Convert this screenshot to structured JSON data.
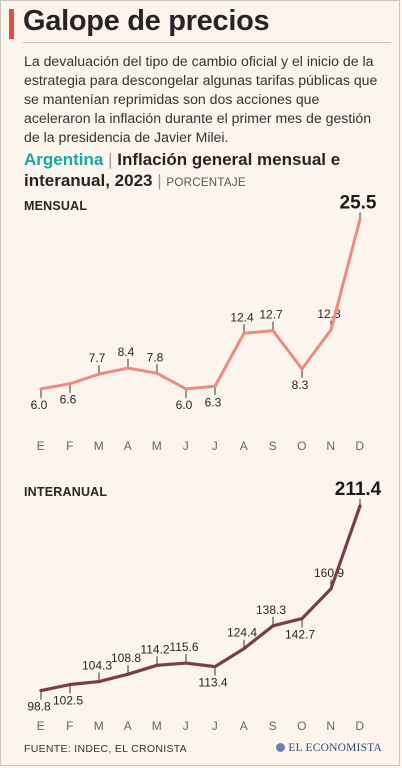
{
  "header": {
    "title": "Galope de precios",
    "intro": "La devaluación del tipo de cambio oficial y el inicio de la estrategia para descongelar algunas tarifas públicas que se mantenían reprimidas son dos acciones que aceleraron la inflación durante el primer mes de gestión de la presidencia de Javier Milei."
  },
  "subtitle": {
    "country": "Argentina",
    "separator": "|",
    "text": "Inflación general mensual e interanual, 2023",
    "unit_separator": "|",
    "unit": "PORCENTAJE"
  },
  "colors": {
    "accent": "#e24f3d",
    "mensual_line": "#ef8a80",
    "interanual_line": "#7a3f40",
    "teal": "#17a7a7"
  },
  "chart_data": [
    {
      "type": "line",
      "title": "MENSUAL",
      "categories": [
        "E",
        "F",
        "M",
        "A",
        "M",
        "J",
        "J",
        "A",
        "S",
        "O",
        "N",
        "D"
      ],
      "values": [
        6.0,
        6.6,
        7.7,
        8.4,
        7.8,
        6.0,
        6.3,
        12.4,
        12.7,
        8.3,
        12.8,
        25.5
      ],
      "labels": [
        "6.0",
        "6.6",
        "7.7",
        "8.4",
        "7.8",
        "6.0",
        "6.3",
        "12.4",
        "12.7",
        "8.3",
        "12.8",
        "25.5"
      ],
      "ylim": [
        3,
        26
      ]
    },
    {
      "type": "line",
      "title": "INTERANUAL",
      "categories": [
        "E",
        "F",
        "M",
        "A",
        "M",
        "J",
        "J",
        "A",
        "S",
        "O",
        "N",
        "D"
      ],
      "values": [
        98.8,
        102.5,
        104.3,
        108.8,
        114.2,
        115.6,
        113.4,
        124.4,
        138.3,
        142.7,
        160.9,
        211.4
      ],
      "labels": [
        "98.8",
        "102.5",
        "104.3",
        "108.8",
        "114.2",
        "115.6",
        "113.4",
        "124.4",
        "138.3",
        "142.7",
        "160.9",
        "211.4"
      ],
      "ylim": [
        90,
        212
      ]
    }
  ],
  "footer": {
    "source": "FUENTE: INDEC, EL CRONISTA",
    "brand": "EL ECONOMISTA"
  }
}
